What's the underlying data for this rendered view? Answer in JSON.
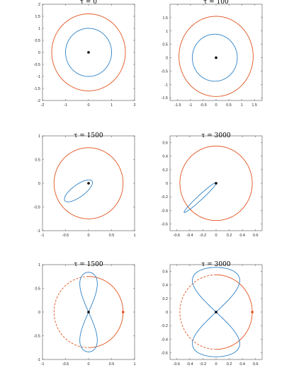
{
  "figure": {
    "orbit_color": "#e0531d",
    "curve_color": "#2f82c5",
    "center_color": "#000000"
  },
  "chart_data": [
    {
      "type": "line",
      "title": "τ = 0",
      "xlim": [
        -2,
        2
      ],
      "ylim": [
        -2,
        2
      ],
      "xticks": [
        -2,
        -1,
        0,
        1,
        2
      ],
      "yticks": [
        -2,
        -1.5,
        -1,
        -0.5,
        0,
        0.5,
        1,
        1.5,
        2
      ],
      "series": [
        {
          "kind": "circle",
          "color": "#e0531d",
          "cx": 0,
          "cy": 0,
          "rx": 1.6,
          "ry": 1.6,
          "rot": 0
        },
        {
          "kind": "circle",
          "color": "#2f82c5",
          "cx": 0,
          "cy": 0,
          "rx": 1.0,
          "ry": 1.0,
          "rot": 0
        }
      ],
      "points": [
        {
          "x": 0,
          "y": 0,
          "color": "#000000"
        }
      ]
    },
    {
      "type": "line",
      "title": "τ = 100",
      "xlim": [
        -1.8,
        1.8
      ],
      "ylim": [
        -1.6,
        2.0
      ],
      "xticks": [
        -1.5,
        -1,
        -0.5,
        0,
        0.5,
        1,
        1.5
      ],
      "yticks": [
        -1.5,
        -1,
        -0.5,
        0,
        0.5,
        1,
        1.5
      ],
      "series": [
        {
          "kind": "circle",
          "color": "#e0531d",
          "cx": 0,
          "cy": 0.05,
          "rx": 1.45,
          "ry": 1.5,
          "rot": 0
        },
        {
          "kind": "circle",
          "color": "#2f82c5",
          "cx": -0.05,
          "cy": 0.0,
          "rx": 0.88,
          "ry": 0.88,
          "rot": 0
        }
      ],
      "points": [
        {
          "x": 0,
          "y": 0,
          "color": "#000000"
        }
      ]
    },
    {
      "type": "line",
      "title": "τ = 1500",
      "xlim": [
        -1,
        1
      ],
      "ylim": [
        -1,
        1
      ],
      "xticks": [
        -1,
        -0.5,
        0,
        0.5,
        1
      ],
      "yticks": [
        -1,
        -0.5,
        0,
        0.5,
        1
      ],
      "series": [
        {
          "kind": "circle",
          "color": "#e0531d",
          "cx": 0,
          "cy": 0,
          "rx": 0.75,
          "ry": 0.75,
          "rot": 0
        },
        {
          "kind": "circle",
          "color": "#2f82c5",
          "cx": -0.22,
          "cy": -0.16,
          "rx": 0.36,
          "ry": 0.13,
          "rot": 35
        }
      ],
      "points": [
        {
          "x": 0,
          "y": 0,
          "color": "#000000"
        }
      ]
    },
    {
      "type": "line",
      "title": "τ = 3000",
      "xlim": [
        -0.7,
        0.7
      ],
      "ylim": [
        -0.7,
        0.7
      ],
      "xticks": [
        -0.6,
        -0.4,
        -0.2,
        0,
        0.2,
        0.4,
        0.6
      ],
      "yticks": [
        -0.6,
        -0.4,
        -0.2,
        0,
        0.2,
        0.4,
        0.6
      ],
      "series": [
        {
          "kind": "circle",
          "color": "#e0531d",
          "cx": 0,
          "cy": 0,
          "rx": 0.55,
          "ry": 0.55,
          "rot": 0
        },
        {
          "kind": "circle",
          "color": "#2f82c5",
          "cx": -0.24,
          "cy": -0.21,
          "rx": 0.33,
          "ry": 0.035,
          "rot": 42
        }
      ],
      "points": [
        {
          "x": 0,
          "y": 0,
          "color": "#000000"
        }
      ]
    },
    {
      "type": "line",
      "title": "τ = 1500",
      "xlim": [
        -1,
        1
      ],
      "ylim": [
        -1,
        1
      ],
      "xticks": [
        -1,
        -0.5,
        0,
        0.5,
        1
      ],
      "yticks": [
        -1,
        -0.5,
        0,
        0.5,
        1
      ],
      "series": [
        {
          "kind": "orbit",
          "color": "#e0531d",
          "cx": 0,
          "cy": 0,
          "r": 0.75
        },
        {
          "kind": "figure8",
          "color": "#2f82c5",
          "a": 0.19,
          "b": 0.84,
          "pinch": 0.04
        }
      ],
      "points": [
        {
          "x": 0,
          "y": 0,
          "color": "#000000"
        },
        {
          "x": 0.75,
          "y": 0,
          "color": "#e0531d"
        }
      ]
    },
    {
      "type": "line",
      "title": "τ = 3000",
      "xlim": [
        -0.7,
        0.7
      ],
      "ylim": [
        -0.7,
        0.7
      ],
      "xticks": [
        -0.6,
        -0.4,
        -0.2,
        0,
        0.2,
        0.4,
        0.6
      ],
      "yticks": [
        -0.6,
        -0.4,
        -0.2,
        0,
        0.2,
        0.4,
        0.6
      ],
      "series": [
        {
          "kind": "orbit",
          "color": "#e0531d",
          "cx": 0,
          "cy": 0,
          "r": 0.55
        },
        {
          "kind": "figure8",
          "color": "#2f82c5",
          "a": 0.36,
          "b": 0.66,
          "pinch": 0.0
        }
      ],
      "points": [
        {
          "x": 0,
          "y": 0,
          "color": "#000000"
        },
        {
          "x": 0.55,
          "y": 0,
          "color": "#e0531d"
        }
      ]
    }
  ]
}
